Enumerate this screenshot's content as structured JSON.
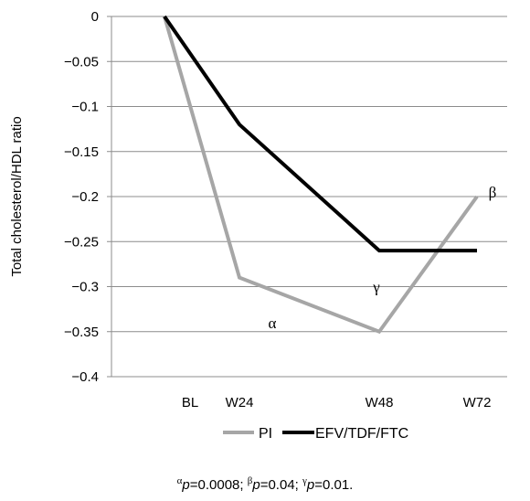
{
  "chart_data": {
    "type": "line",
    "title": "",
    "xlabel": "",
    "ylabel": "Total cholesterol/HDL ratio",
    "categories": [
      "BL",
      "W24",
      "W48",
      "W72"
    ],
    "ylim": [
      -0.4,
      0
    ],
    "yticks": [
      0,
      -0.05,
      -0.1,
      -0.15,
      -0.2,
      -0.25,
      -0.3,
      -0.35,
      -0.4
    ],
    "ytick_labels": [
      "0",
      "−0.05",
      "−0.1",
      "−0.15",
      "−0.2",
      "−0.25",
      "−0.3",
      "−0.35",
      "−0.4"
    ],
    "grid": true,
    "legend_position": "bottom",
    "series": [
      {
        "name": "PI",
        "color": "#a6a6a6",
        "values": [
          0,
          -0.29,
          -0.35,
          -0.2
        ]
      },
      {
        "name": "EFV/TDF/FTC",
        "color": "#000000",
        "values": [
          0,
          -0.12,
          -0.26,
          -0.26
        ]
      }
    ],
    "annotations": [
      {
        "text": "α",
        "x": "W24",
        "y": -0.34
      },
      {
        "text": "γ",
        "x": "W48",
        "y": -0.3
      },
      {
        "text": "β",
        "x": "W72",
        "y": -0.195
      }
    ]
  },
  "footnote": {
    "parts": [
      {
        "sup": "α",
        "p": "p",
        "rest": "=0.0008; "
      },
      {
        "sup": "β",
        "p": "p",
        "rest": "=0.04; "
      },
      {
        "sup": "γ",
        "p": "p",
        "rest": "=0.01."
      }
    ]
  }
}
